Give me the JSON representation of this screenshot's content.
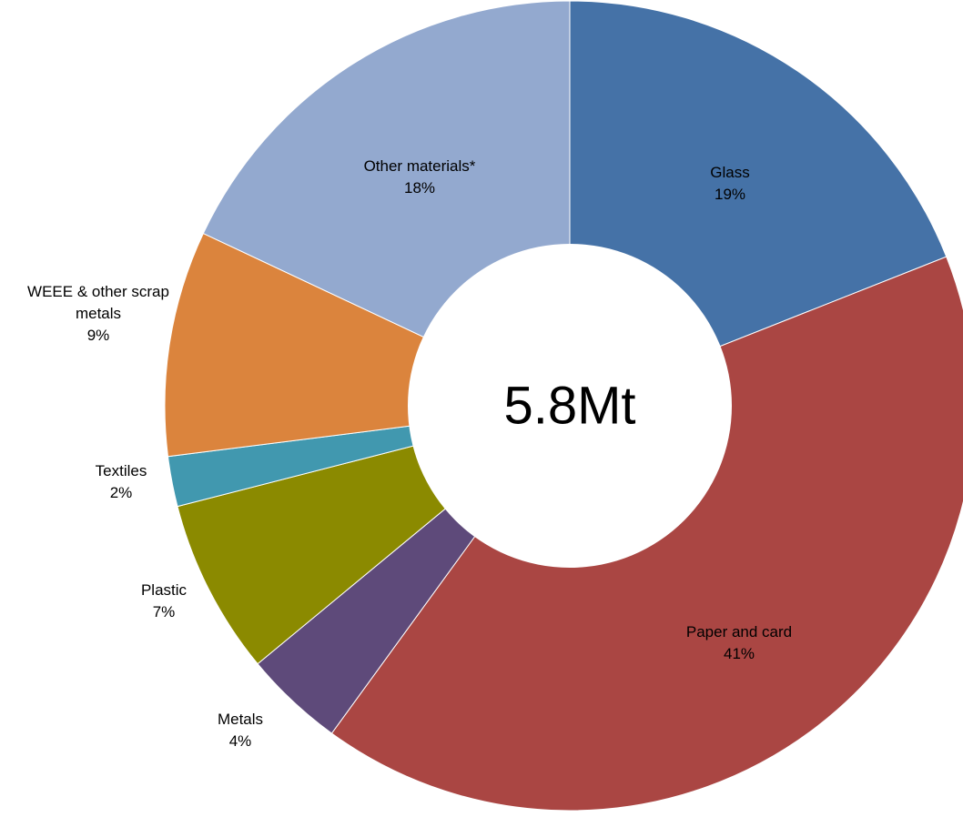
{
  "chart_data": {
    "type": "pie",
    "style": "donut",
    "center_label": "5.8Mt",
    "slices": [
      {
        "label": "Glass",
        "value": 19,
        "value_label": "19%",
        "color": "#4572A7"
      },
      {
        "label": "Paper and card",
        "value": 41,
        "value_label": "41%",
        "color": "#AA4643"
      },
      {
        "label": "Metals",
        "value": 4,
        "value_label": "4%",
        "color": "#5E4A7A"
      },
      {
        "label": "Plastic",
        "value": 7,
        "value_label": "7%",
        "color": "#8B8A00"
      },
      {
        "label": "Textiles",
        "value": 2,
        "value_label": "2%",
        "color": "#4198AF"
      },
      {
        "label": "WEEE & other scrap metals",
        "value": 9,
        "value_label": "9%",
        "color": "#DB843D"
      },
      {
        "label": "Other materials*",
        "value": 18,
        "value_label": "18%",
        "color": "#93A9CF"
      }
    ]
  }
}
